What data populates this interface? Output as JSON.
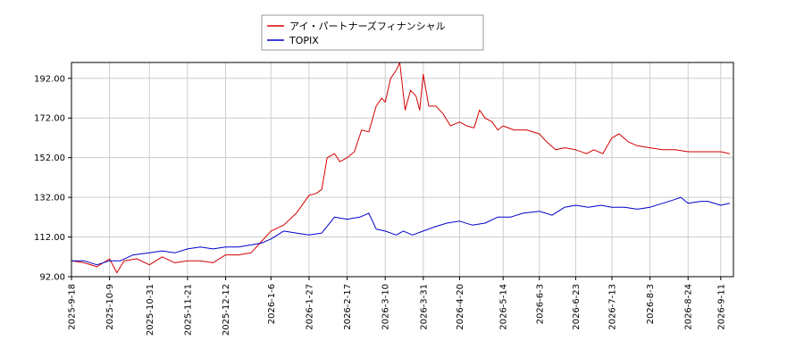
{
  "chart_data": {
    "type": "line",
    "legend_position": "top-center",
    "grid": true,
    "ylim": [
      92,
      200
    ],
    "yticks": [
      "192.00",
      "172.00",
      "152.00",
      "132.00",
      "112.00",
      "92.00"
    ],
    "ytick_values": [
      192,
      172,
      152,
      132,
      112,
      92
    ],
    "xlim": [
      "2025-09-18",
      "2026-09-18"
    ],
    "xticks": [
      "2025-9-18",
      "2025-10-9",
      "2025-10-31",
      "2025-11-21",
      "2025-12-12",
      "2026-1-6",
      "2026-1-27",
      "2026-2-17",
      "2026-3-10",
      "2026-3-31",
      "2026-4-20",
      "2026-5-14",
      "2026-6-3",
      "2026-6-23",
      "2026-7-13",
      "2026-8-3",
      "2026-8-24",
      "2026-9-11"
    ],
    "xtick_dates": [
      "2025-09-18",
      "2025-10-09",
      "2025-10-31",
      "2025-11-21",
      "2025-12-12",
      "2026-01-06",
      "2026-01-27",
      "2026-02-17",
      "2026-03-10",
      "2026-03-31",
      "2026-04-20",
      "2026-05-14",
      "2026-06-03",
      "2026-06-23",
      "2026-07-13",
      "2026-08-03",
      "2026-08-24",
      "2026-09-11"
    ],
    "series": [
      {
        "name": "アイ・パートナーズフィナンシャル",
        "color": "#d40000",
        "points": [
          [
            "2025-09-18",
            100
          ],
          [
            "2025-09-25",
            99
          ],
          [
            "2025-10-02",
            97
          ],
          [
            "2025-10-09",
            101
          ],
          [
            "2025-10-13",
            94
          ],
          [
            "2025-10-17",
            100
          ],
          [
            "2025-10-24",
            101
          ],
          [
            "2025-10-31",
            98
          ],
          [
            "2025-11-07",
            102
          ],
          [
            "2025-11-14",
            99
          ],
          [
            "2025-11-21",
            100
          ],
          [
            "2025-11-28",
            100
          ],
          [
            "2025-12-05",
            99
          ],
          [
            "2025-12-12",
            103
          ],
          [
            "2025-12-19",
            103
          ],
          [
            "2025-12-26",
            104
          ],
          [
            "2026-01-01",
            110
          ],
          [
            "2026-01-06",
            115
          ],
          [
            "2026-01-13",
            118
          ],
          [
            "2026-01-20",
            124
          ],
          [
            "2026-01-27",
            133
          ],
          [
            "2026-01-31",
            134
          ],
          [
            "2026-02-03",
            136
          ],
          [
            "2026-02-06",
            152
          ],
          [
            "2026-02-10",
            154
          ],
          [
            "2026-02-13",
            150
          ],
          [
            "2026-02-17",
            152
          ],
          [
            "2026-02-21",
            155
          ],
          [
            "2026-02-25",
            166
          ],
          [
            "2026-03-01",
            165
          ],
          [
            "2026-03-05",
            178
          ],
          [
            "2026-03-08",
            182
          ],
          [
            "2026-03-10",
            180
          ],
          [
            "2026-03-13",
            192
          ],
          [
            "2026-03-16",
            196
          ],
          [
            "2026-03-18",
            200
          ],
          [
            "2026-03-21",
            176
          ],
          [
            "2026-03-24",
            186
          ],
          [
            "2026-03-27",
            183
          ],
          [
            "2026-03-29",
            176
          ],
          [
            "2026-03-31",
            194
          ],
          [
            "2026-04-03",
            178
          ],
          [
            "2026-04-07",
            178
          ],
          [
            "2026-04-11",
            174
          ],
          [
            "2026-04-15",
            168
          ],
          [
            "2026-04-20",
            170
          ],
          [
            "2026-04-24",
            168
          ],
          [
            "2026-04-28",
            167
          ],
          [
            "2026-05-01",
            176
          ],
          [
            "2026-05-04",
            172
          ],
          [
            "2026-05-08",
            170
          ],
          [
            "2026-05-11",
            166
          ],
          [
            "2026-05-14",
            168
          ],
          [
            "2026-05-20",
            166
          ],
          [
            "2026-05-27",
            166
          ],
          [
            "2026-06-03",
            164
          ],
          [
            "2026-06-07",
            160
          ],
          [
            "2026-06-12",
            156
          ],
          [
            "2026-06-17",
            157
          ],
          [
            "2026-06-23",
            156
          ],
          [
            "2026-06-29",
            154
          ],
          [
            "2026-07-03",
            156
          ],
          [
            "2026-07-08",
            154
          ],
          [
            "2026-07-13",
            162
          ],
          [
            "2026-07-17",
            164
          ],
          [
            "2026-07-22",
            160
          ],
          [
            "2026-07-27",
            158
          ],
          [
            "2026-08-03",
            157
          ],
          [
            "2026-08-10",
            156
          ],
          [
            "2026-08-17",
            156
          ],
          [
            "2026-08-24",
            155
          ],
          [
            "2026-08-31",
            155
          ],
          [
            "2026-09-05",
            155
          ],
          [
            "2026-09-11",
            155
          ],
          [
            "2026-09-16",
            154
          ]
        ]
      },
      {
        "name": "TOPIX",
        "color": "#0000cc",
        "points": [
          [
            "2025-09-18",
            100
          ],
          [
            "2025-09-25",
            100
          ],
          [
            "2025-10-02",
            98
          ],
          [
            "2025-10-09",
            100
          ],
          [
            "2025-10-15",
            100
          ],
          [
            "2025-10-22",
            103
          ],
          [
            "2025-10-31",
            104
          ],
          [
            "2025-11-07",
            105
          ],
          [
            "2025-11-14",
            104
          ],
          [
            "2025-11-21",
            106
          ],
          [
            "2025-11-28",
            107
          ],
          [
            "2025-12-05",
            106
          ],
          [
            "2025-12-12",
            107
          ],
          [
            "2025-12-19",
            107
          ],
          [
            "2025-12-26",
            108
          ],
          [
            "2026-01-01",
            109
          ],
          [
            "2026-01-06",
            111
          ],
          [
            "2026-01-13",
            115
          ],
          [
            "2026-01-20",
            114
          ],
          [
            "2026-01-27",
            113
          ],
          [
            "2026-02-03",
            114
          ],
          [
            "2026-02-10",
            122
          ],
          [
            "2026-02-17",
            121
          ],
          [
            "2026-02-24",
            122
          ],
          [
            "2026-03-01",
            124
          ],
          [
            "2026-03-05",
            116
          ],
          [
            "2026-03-10",
            115
          ],
          [
            "2026-03-16",
            113
          ],
          [
            "2026-03-20",
            115
          ],
          [
            "2026-03-25",
            113
          ],
          [
            "2026-03-31",
            115
          ],
          [
            "2026-04-06",
            117
          ],
          [
            "2026-04-13",
            119
          ],
          [
            "2026-04-20",
            120
          ],
          [
            "2026-04-27",
            118
          ],
          [
            "2026-05-04",
            119
          ],
          [
            "2026-05-11",
            122
          ],
          [
            "2026-05-18",
            122
          ],
          [
            "2026-05-25",
            124
          ],
          [
            "2026-06-03",
            125
          ],
          [
            "2026-06-10",
            123
          ],
          [
            "2026-06-17",
            127
          ],
          [
            "2026-06-23",
            128
          ],
          [
            "2026-06-30",
            127
          ],
          [
            "2026-07-07",
            128
          ],
          [
            "2026-07-13",
            127
          ],
          [
            "2026-07-20",
            127
          ],
          [
            "2026-07-27",
            126
          ],
          [
            "2026-08-03",
            127
          ],
          [
            "2026-08-10",
            129
          ],
          [
            "2026-08-17",
            131
          ],
          [
            "2026-08-20",
            132
          ],
          [
            "2026-08-24",
            129
          ],
          [
            "2026-08-31",
            130
          ],
          [
            "2026-09-04",
            130
          ],
          [
            "2026-09-11",
            128
          ],
          [
            "2026-09-16",
            129
          ]
        ]
      }
    ]
  }
}
